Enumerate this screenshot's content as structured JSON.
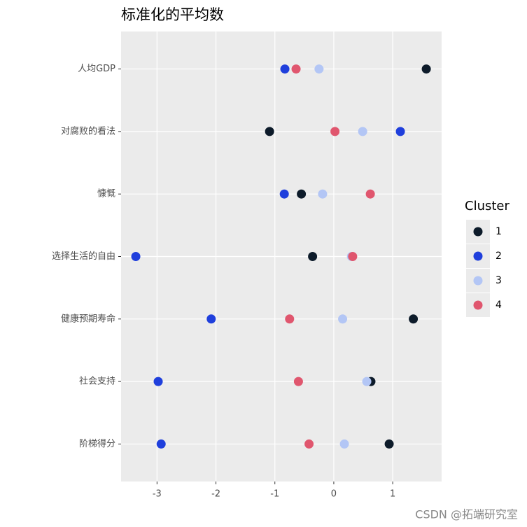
{
  "chart_data": {
    "type": "dot",
    "title": "标准化的平均数",
    "categories": [
      "人均GDP",
      "对腐败的看法",
      "慷慨",
      "选择生活的自由",
      "健康预期寿命",
      "社会支持",
      "阶梯得分"
    ],
    "series": [
      {
        "name": "1",
        "color": "#0d1b2a",
        "values": [
          1.57,
          -1.09,
          -0.55,
          -0.36,
          1.35,
          0.63,
          0.94
        ]
      },
      {
        "name": "2",
        "color": "#1f3fdc",
        "values": [
          -0.83,
          1.13,
          -0.84,
          -3.36,
          -2.08,
          -2.98,
          -2.93
        ]
      },
      {
        "name": "3",
        "color": "#b3c6f5",
        "values": [
          -0.25,
          0.49,
          -0.19,
          0.3,
          0.15,
          0.56,
          0.18
        ]
      },
      {
        "name": "4",
        "color": "#e0566e",
        "values": [
          -0.64,
          0.02,
          0.62,
          0.32,
          -0.75,
          -0.6,
          -0.42
        ]
      }
    ],
    "legend_title": "Cluster",
    "xlim": [
      -3.61,
      1.83
    ],
    "xticks": [
      -3,
      -2,
      -1,
      0,
      1
    ],
    "grid": true,
    "watermark": "CSDN @拓端研究室"
  }
}
